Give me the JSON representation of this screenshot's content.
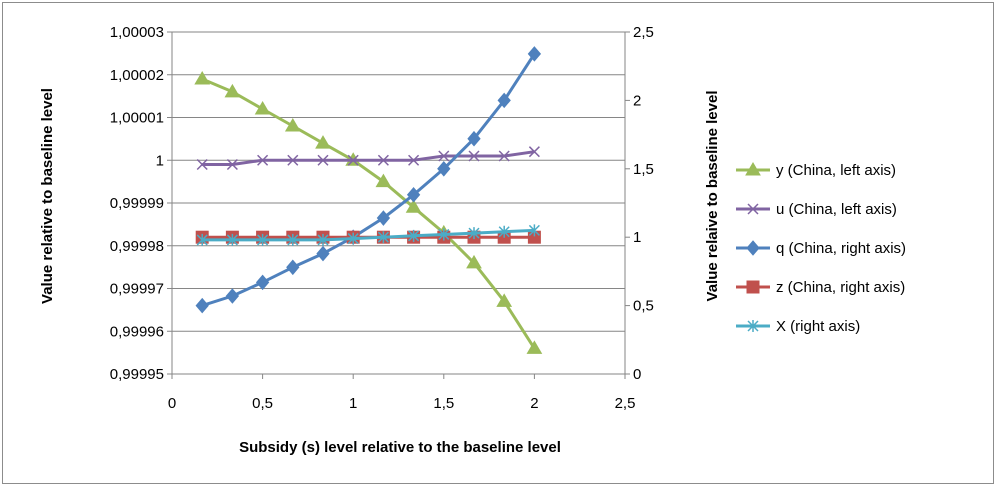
{
  "chart_data": {
    "type": "line",
    "title": "",
    "xlabel": "Subsidy (s) level relative to the baseline level",
    "ylabel_left": "Value relative to baseline level",
    "ylabel_right": "Value relaive to baseline level",
    "xlim": [
      0,
      2.5
    ],
    "ylim_left": [
      0.99995,
      1.00003
    ],
    "ylim_right": [
      0,
      2.5
    ],
    "x_ticks": [
      "0",
      "0,5",
      "1",
      "1,5",
      "2",
      "2,5"
    ],
    "y_left_ticks": [
      "0,99995",
      "0,99996",
      "0,99997",
      "0,99998",
      "0,99999",
      "1",
      "1,00001",
      "1,00002",
      "1,00003"
    ],
    "y_right_ticks": [
      "0",
      "0,5",
      "1",
      "1,5",
      "2",
      "2,5"
    ],
    "grid": "horizontal",
    "legend_position": "right",
    "x": [
      0.1667,
      0.3333,
      0.5,
      0.6667,
      0.8333,
      1.0,
      1.1667,
      1.3333,
      1.5,
      1.6667,
      1.8333,
      2.0
    ],
    "series": [
      {
        "name": "y (China, left axis)",
        "axis": "left",
        "color": "#9BBB59",
        "marker": "triangle",
        "values": [
          1.000019,
          1.000016,
          1.000012,
          1.000008,
          1.000004,
          1.0,
          0.999995,
          0.999989,
          0.999983,
          0.999976,
          0.999967,
          0.999956
        ]
      },
      {
        "name": "u (China, left axis)",
        "axis": "left",
        "color": "#8064A2",
        "marker": "x",
        "values": [
          0.999999,
          0.999999,
          1.0,
          1.0,
          1.0,
          1.0,
          1.0,
          1.0,
          1.000001,
          1.000001,
          1.000001,
          1.000002
        ]
      },
      {
        "name": "q (China, right axis)",
        "axis": "right",
        "color": "#4F81BD",
        "marker": "diamond",
        "values": [
          0.5,
          0.57,
          0.67,
          0.78,
          0.88,
          1.0,
          1.14,
          1.31,
          1.5,
          1.72,
          2.0,
          2.34
        ]
      },
      {
        "name": "z (China, right axis)",
        "axis": "right",
        "color": "#C0504D",
        "marker": "square",
        "values": [
          1.0,
          1.0,
          1.0,
          1.0,
          1.0,
          1.0,
          1.0,
          1.0,
          1.0,
          1.0,
          1.0,
          1.0
        ]
      },
      {
        "name": "X (right axis)",
        "axis": "right",
        "color": "#4BACC6",
        "marker": "star",
        "values": [
          0.98,
          0.98,
          0.98,
          0.98,
          0.98,
          0.99,
          1.0,
          1.01,
          1.02,
          1.03,
          1.04,
          1.05
        ]
      }
    ]
  }
}
